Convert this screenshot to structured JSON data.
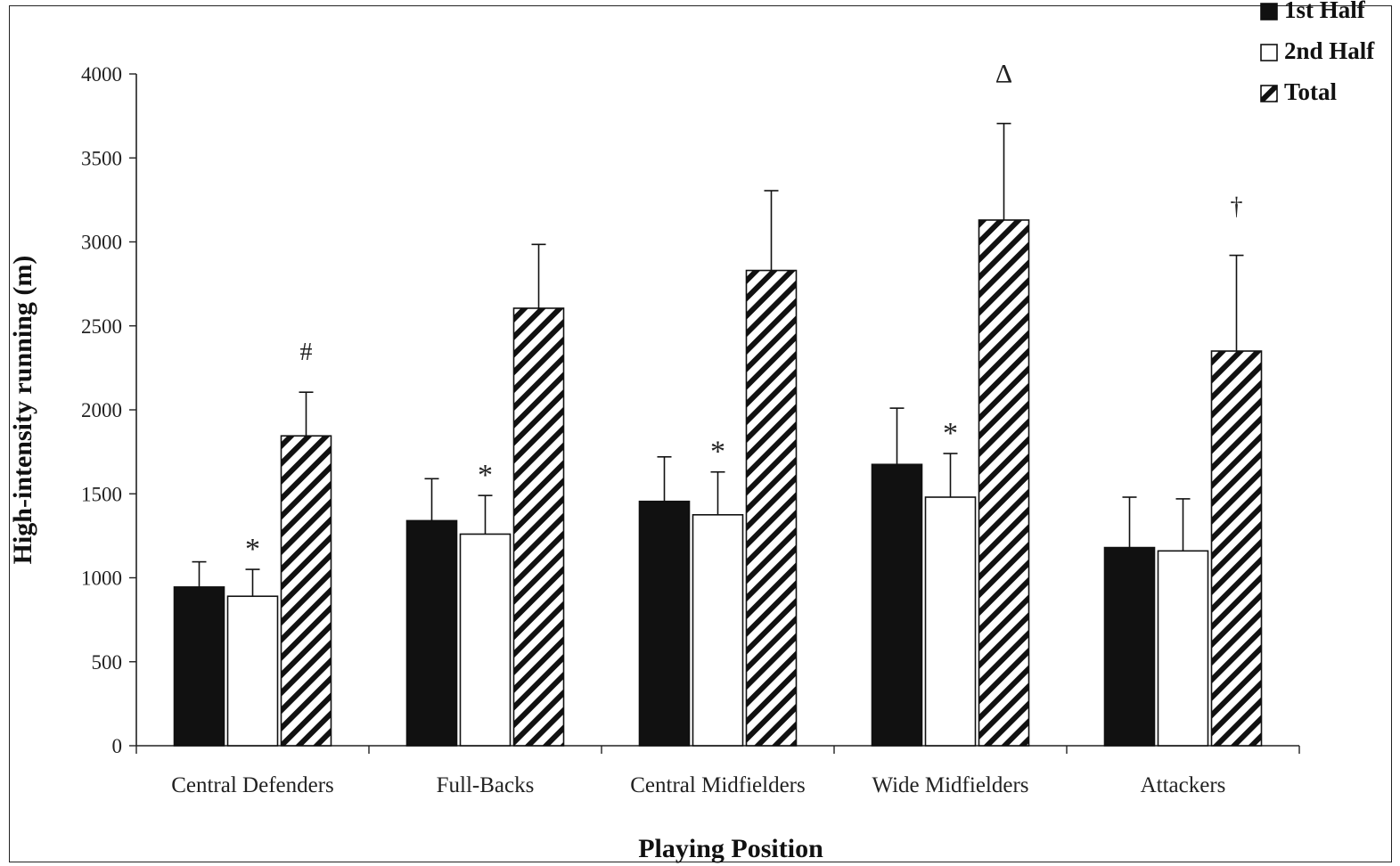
{
  "chart_data": {
    "type": "bar",
    "title": "",
    "xlabel": "Playing Position",
    "ylabel": "High-intensity running (m)",
    "ylim": [
      0,
      4000
    ],
    "yticks": [
      0,
      500,
      1000,
      1500,
      2000,
      2500,
      3000,
      3500,
      4000
    ],
    "grid": false,
    "legend_position": "top-right",
    "categories": [
      "Central Defenders",
      "Full-Backs",
      "Central Midfielders",
      "Wide Midfielders",
      "Attackers"
    ],
    "series": [
      {
        "name": "1st Half",
        "fill": "solid-black",
        "values": [
          945,
          1340,
          1455,
          1675,
          1180
        ],
        "errors": [
          150,
          250,
          265,
          335,
          300
        ]
      },
      {
        "name": "2nd Half",
        "fill": "white",
        "values": [
          890,
          1260,
          1375,
          1480,
          1160
        ],
        "errors": [
          160,
          230,
          255,
          260,
          310
        ]
      },
      {
        "name": "Total",
        "fill": "diagonal-hatch",
        "values": [
          1845,
          2605,
          2830,
          3130,
          2350
        ],
        "errors": [
          260,
          380,
          475,
          575,
          570
        ]
      }
    ],
    "annotations": [
      {
        "category": "Central Defenders",
        "series": "2nd Half",
        "text": "*"
      },
      {
        "category": "Central Defenders",
        "series": "Total",
        "text": "#"
      },
      {
        "category": "Full-Backs",
        "series": "2nd Half",
        "text": "*"
      },
      {
        "category": "Central Midfielders",
        "series": "2nd Half",
        "text": "*"
      },
      {
        "category": "Wide Midfielders",
        "series": "2nd Half",
        "text": "*"
      },
      {
        "category": "Wide Midfielders",
        "series": "Total",
        "text": "Δ"
      },
      {
        "category": "Attackers",
        "series": "Total",
        "text": "†"
      }
    ],
    "colors": {
      "bar_stroke": "#111111",
      "black_fill": "#111111",
      "white_fill": "#ffffff",
      "axis": "#222222"
    }
  }
}
